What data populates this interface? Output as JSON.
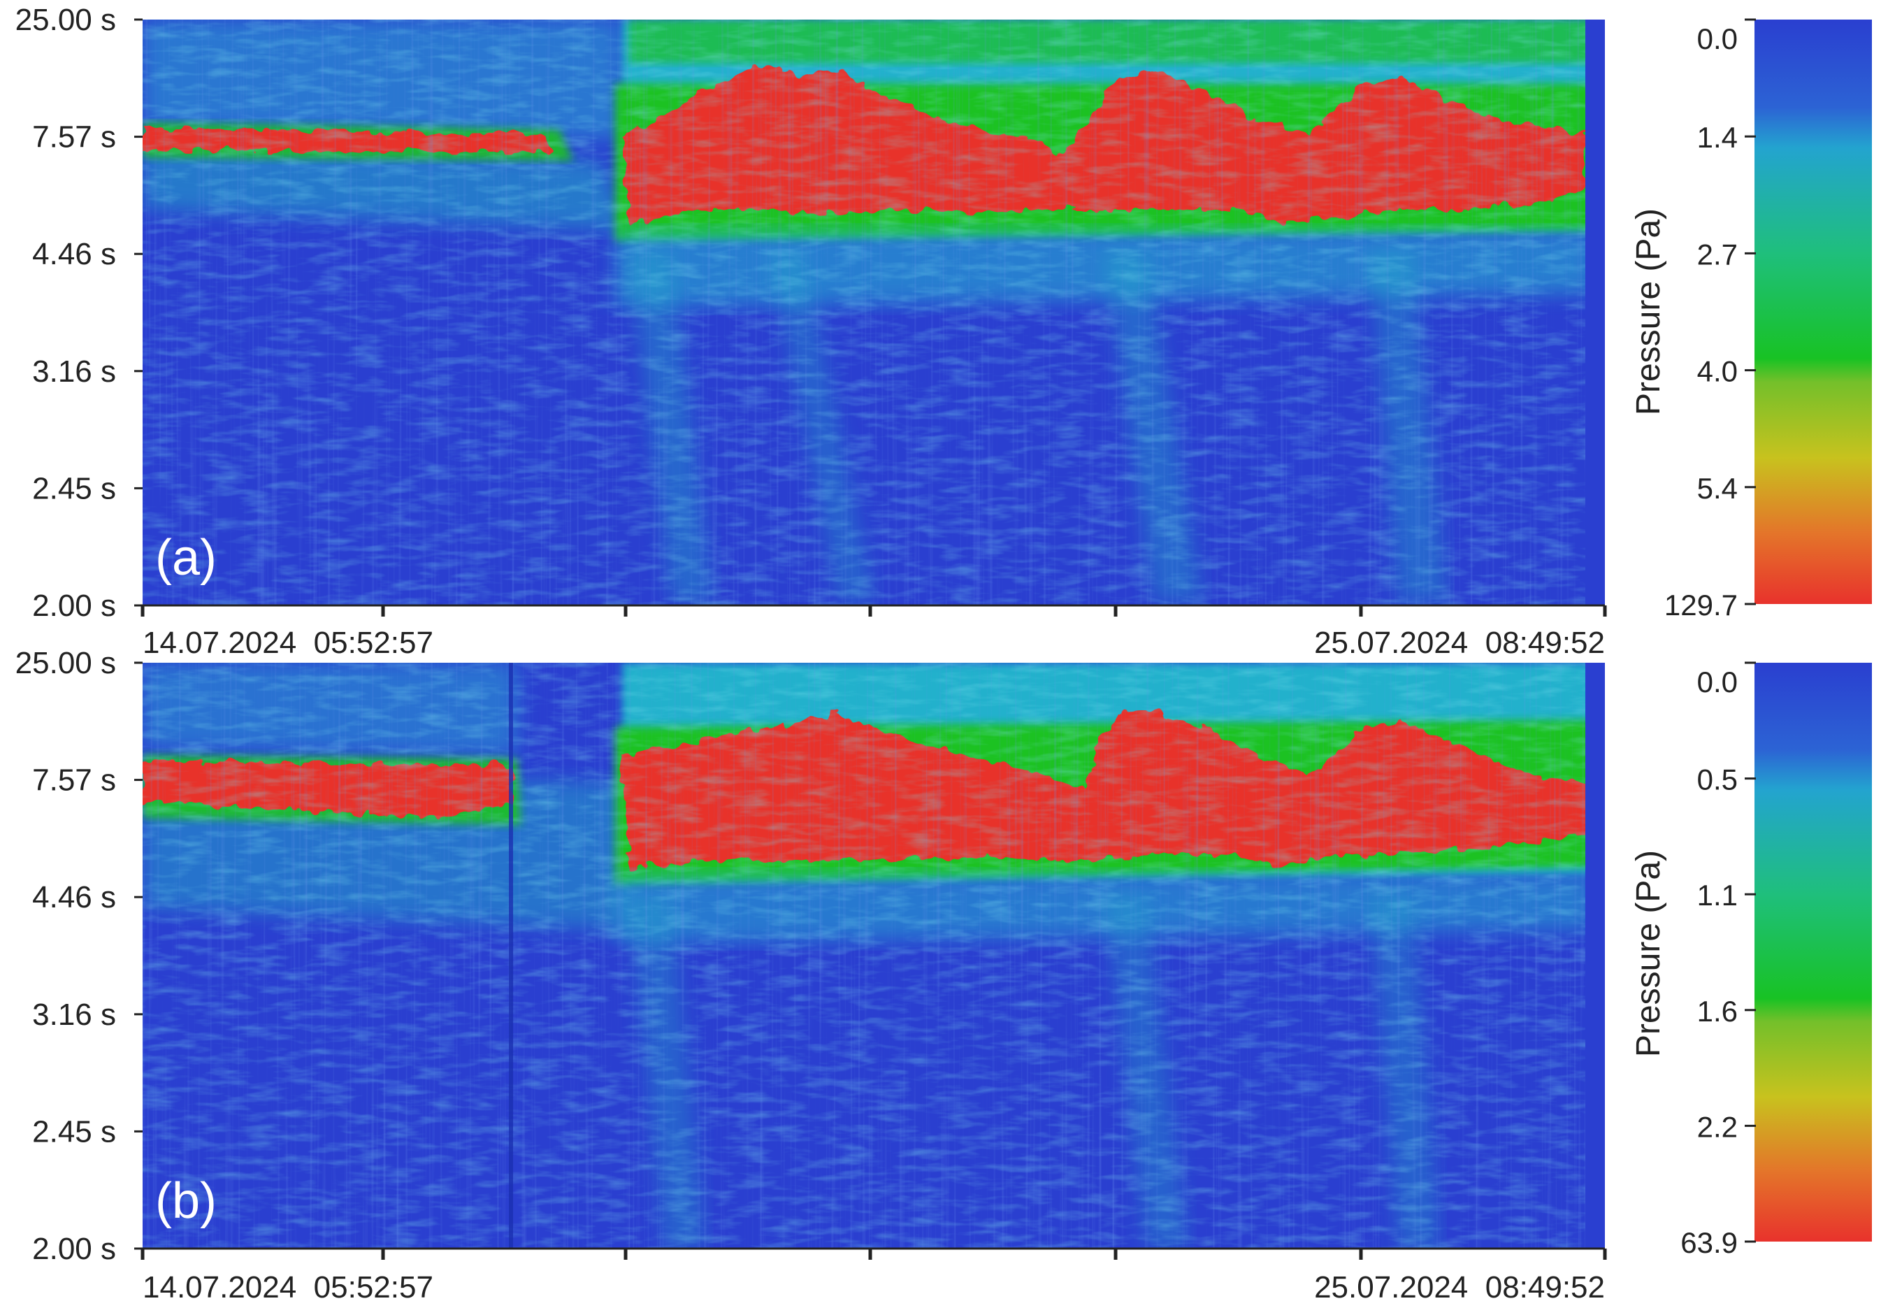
{
  "chart_data": [
    {
      "type": "heatmap",
      "panel_label": "(a)",
      "y_ticks": [
        "25.00 s",
        "7.57 s",
        "4.46 s",
        "3.16 s",
        "2.45 s",
        "2.00 s"
      ],
      "x_start_label": "14.07.2024  05:52:57",
      "x_end_label": "25.07.2024  08:49:52",
      "colorbar": {
        "title": "Pressure (Pa)",
        "ticks": [
          "0.0",
          "1.4",
          "2.7",
          "4.0",
          "5.4",
          "129.7"
        ]
      }
    },
    {
      "type": "heatmap",
      "panel_label": "(b)",
      "y_ticks": [
        "25.00 s",
        "7.57 s",
        "4.46 s",
        "3.16 s",
        "2.45 s",
        "2.00 s"
      ],
      "x_start_label": "14.07.2024  05:52:57",
      "x_end_label": "25.07.2024  08:49:52",
      "colorbar": {
        "title": "Pressure (Pa)",
        "ticks": [
          "0.0",
          "0.5",
          "1.1",
          "1.6",
          "2.2",
          "63.9"
        ]
      }
    }
  ],
  "colors": {
    "low": "#2a3fd0",
    "cyan": "#22b8cc",
    "green": "#1cc224",
    "yellow": "#c8c21e",
    "high": "#e8322c"
  }
}
